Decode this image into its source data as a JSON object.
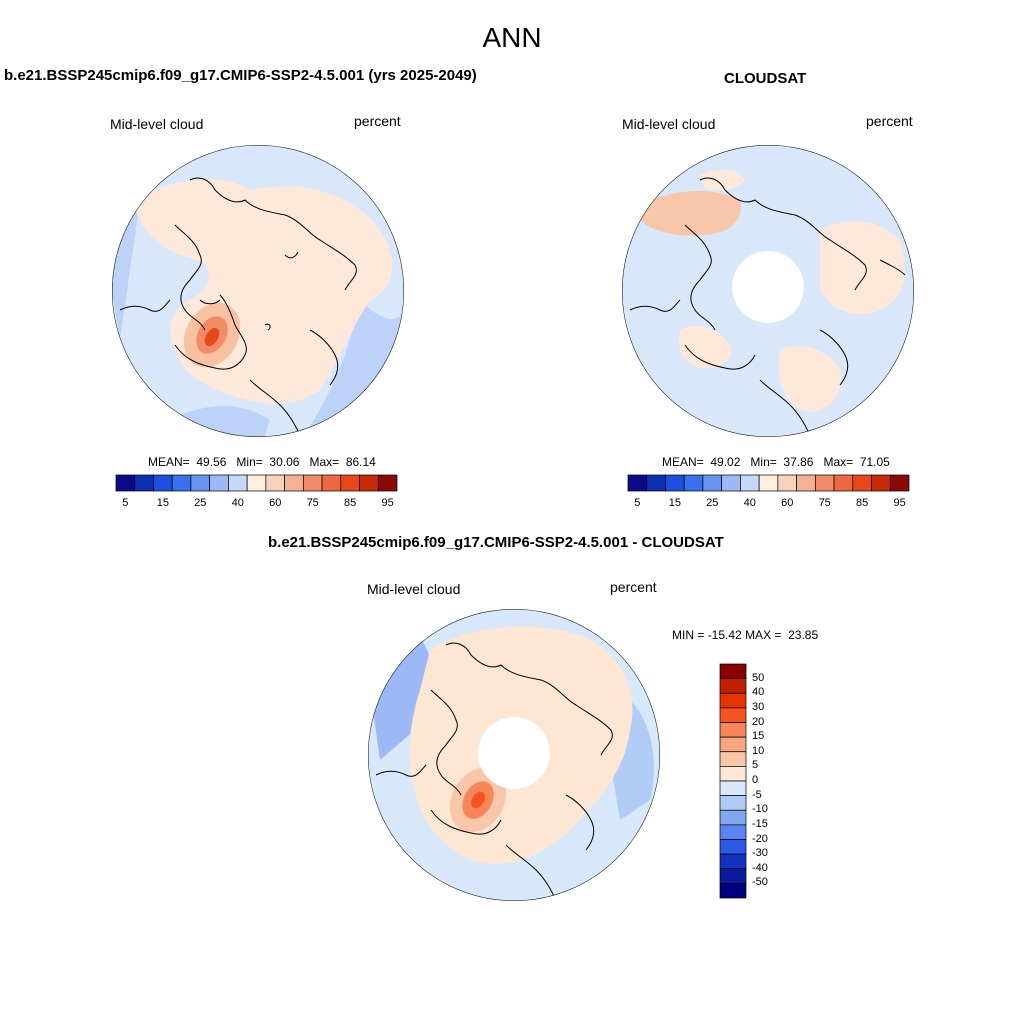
{
  "page_title": "ANN",
  "panels": [
    {
      "title": "b.e21.BSSP245cmip6.f09_g17.CMIP6-SSP2-4.5.001 (yrs 2025-2049)",
      "left_label": "Mid-level cloud",
      "right_label": "percent",
      "stats": {
        "mean": "49.56",
        "min": "30.06",
        "max": "86.14"
      }
    },
    {
      "title": "CLOUDSAT",
      "left_label": "Mid-level cloud",
      "right_label": "percent",
      "stats": {
        "mean": "49.02",
        "min": "37.86",
        "max": "71.05"
      }
    },
    {
      "title": "b.e21.BSSP245cmip6.f09_g17.CMIP6-SSP2-4.5.001 - CLOUDSAT",
      "left_label": "Mid-level cloud",
      "right_label": "percent",
      "stats": {
        "min": "-15.42",
        "max": "23.85"
      }
    }
  ],
  "stat_labels": {
    "mean": "MEAN=",
    "min": "Min=",
    "max": "Max=",
    "diff_min": "MIN =",
    "diff_max": "MAX ="
  },
  "colorbar_abs": {
    "tick_labels": [
      "5",
      "15",
      "25",
      "40",
      "60",
      "75",
      "85",
      "95"
    ],
    "colors": [
      "#0a0a8a",
      "#0b2fb0",
      "#1a4fe0",
      "#3a6ff0",
      "#6a94f2",
      "#9cb8f5",
      "#c5d8f8",
      "#fdeee0",
      "#f8d2ba",
      "#f4b196",
      "#f28b68",
      "#ef6840",
      "#e84818",
      "#c82a0a",
      "#8a0a0a"
    ]
  },
  "colorbar_diff": {
    "tick_labels": [
      "50",
      "40",
      "30",
      "20",
      "15",
      "10",
      "5",
      "0",
      "-5",
      "-10",
      "-15",
      "-20",
      "-30",
      "-40",
      "-50"
    ],
    "colors": [
      "#8a0000",
      "#c41e00",
      "#e63600",
      "#f45520",
      "#f6865a",
      "#f7a580",
      "#f8c6a8",
      "#fde6d2",
      "#d8e8fb",
      "#b0ccf5",
      "#84a8f0",
      "#5b84ee",
      "#2c58e6",
      "#1432c0",
      "#0a1a9a",
      "#000080"
    ]
  },
  "map_colors": {
    "land_line": "#000000",
    "missing": "#ffffff"
  }
}
